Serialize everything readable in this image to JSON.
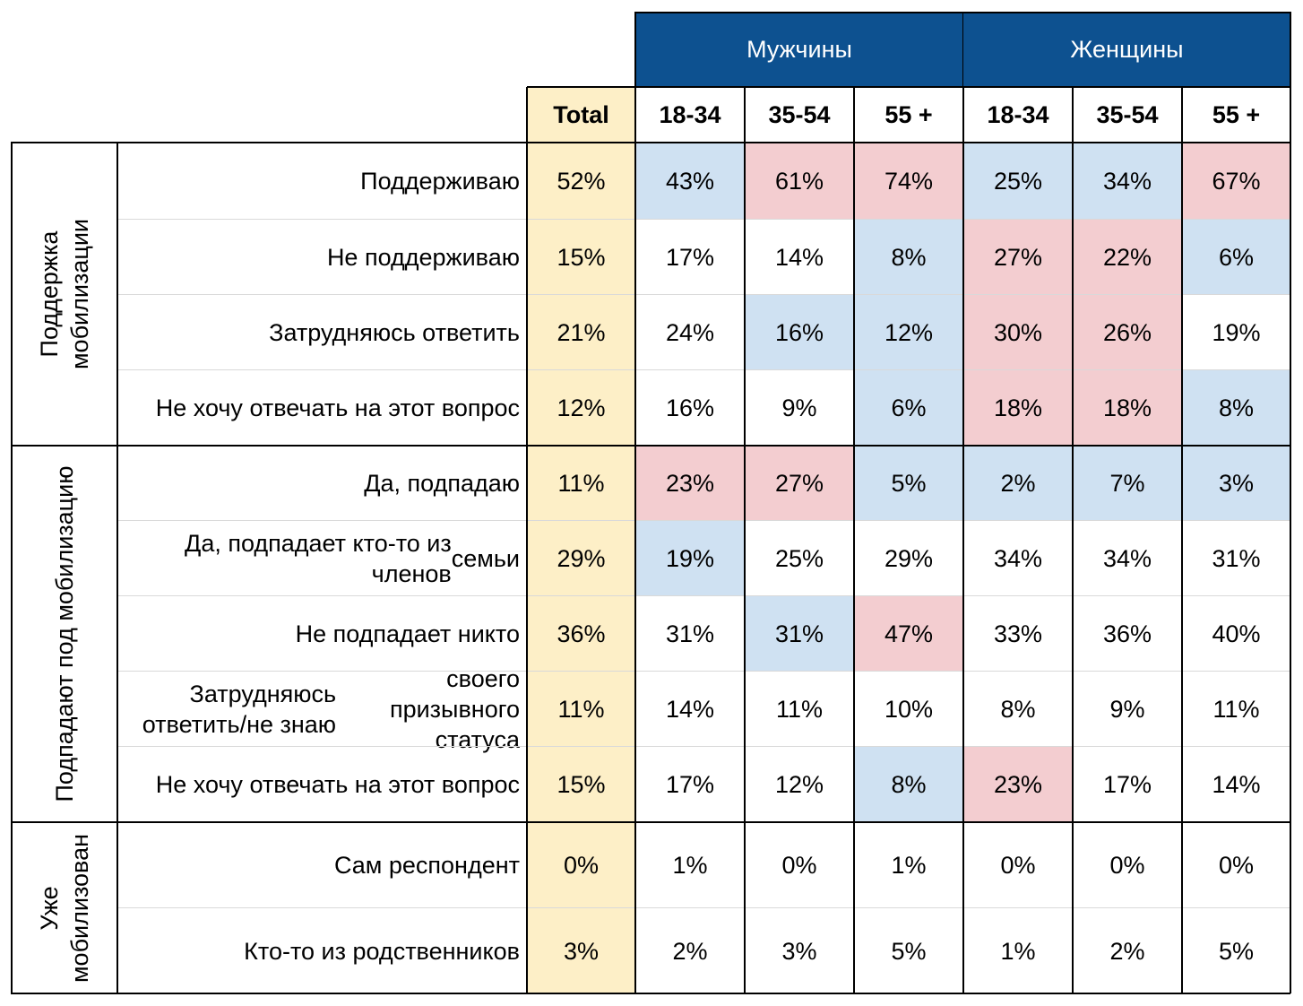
{
  "chart_data": {
    "type": "table",
    "groups": [
      {
        "name": "Мужчины",
        "columns": [
          "18-34",
          "35-54",
          "55 +"
        ]
      },
      {
        "name": "Женщины",
        "columns": [
          "18-34",
          "35-54",
          "55 +"
        ]
      }
    ],
    "total_label": "Total",
    "column_headers": [
      "Total",
      "18-34",
      "35-54",
      "55 +",
      "18-34",
      "35-54",
      "55 +"
    ],
    "sections": [
      {
        "name": "Поддержка мобилизации",
        "rows": [
          {
            "label": "Поддерживаю",
            "values": [
              "52%",
              "43%",
              "61%",
              "74%",
              "25%",
              "34%",
              "67%"
            ],
            "highlight": [
              "",
              "blue",
              "red",
              "red",
              "blue",
              "blue",
              "red"
            ]
          },
          {
            "label": "Не поддерживаю",
            "values": [
              "15%",
              "17%",
              "14%",
              "8%",
              "27%",
              "22%",
              "6%"
            ],
            "highlight": [
              "",
              "",
              "",
              "blue",
              "red",
              "red",
              "blue"
            ]
          },
          {
            "label": "Затрудняюсь ответить",
            "values": [
              "21%",
              "24%",
              "16%",
              "12%",
              "30%",
              "26%",
              "19%"
            ],
            "highlight": [
              "",
              "",
              "blue",
              "blue",
              "red",
              "red",
              ""
            ]
          },
          {
            "label": "Не хочу отвечать на этот вопрос",
            "values": [
              "12%",
              "16%",
              "9%",
              "6%",
              "18%",
              "18%",
              "8%"
            ],
            "highlight": [
              "",
              "",
              "",
              "blue",
              "red",
              "red",
              "blue"
            ]
          }
        ]
      },
      {
        "name": "Подпадают под мобилизацию",
        "rows": [
          {
            "label": "Да, подпадаю",
            "values": [
              "11%",
              "23%",
              "27%",
              "5%",
              "2%",
              "7%",
              "3%"
            ],
            "highlight": [
              "",
              "red",
              "red",
              "blue",
              "blue",
              "blue",
              "blue"
            ]
          },
          {
            "label": "Да, подпадает кто-то из членов семьи",
            "values": [
              "29%",
              "19%",
              "25%",
              "29%",
              "34%",
              "34%",
              "31%"
            ],
            "highlight": [
              "",
              "blue",
              "",
              "",
              "",
              "",
              ""
            ]
          },
          {
            "label": "Не подпадает никто",
            "values": [
              "36%",
              "31%",
              "31%",
              "47%",
              "33%",
              "36%",
              "40%"
            ],
            "highlight": [
              "",
              "",
              "blue",
              "red",
              "",
              "",
              ""
            ]
          },
          {
            "label": "Затрудняюсь ответить/не знаю своего призывного статуса",
            "values": [
              "11%",
              "14%",
              "11%",
              "10%",
              "8%",
              "9%",
              "11%"
            ],
            "highlight": [
              "",
              "",
              "",
              "",
              "",
              "",
              ""
            ]
          },
          {
            "label": "Не хочу отвечать на этот вопрос",
            "values": [
              "15%",
              "17%",
              "12%",
              "8%",
              "23%",
              "17%",
              "14%"
            ],
            "highlight": [
              "",
              "",
              "",
              "blue",
              "red",
              "",
              ""
            ]
          }
        ]
      },
      {
        "name": "Уже мобилизован",
        "rows": [
          {
            "label": "Сам респондент",
            "values": [
              "0%",
              "1%",
              "0%",
              "1%",
              "0%",
              "0%",
              "0%"
            ],
            "highlight": [
              "",
              "",
              "",
              "",
              "",
              "",
              ""
            ]
          },
          {
            "label": "Кто-то из родственников",
            "values": [
              "3%",
              "2%",
              "3%",
              "5%",
              "1%",
              "2%",
              "5%"
            ],
            "highlight": [
              "",
              "",
              "",
              "",
              "",
              "",
              ""
            ]
          }
        ]
      }
    ]
  },
  "label_lines": {
    "Да, подпадает кто-то из членов семьи": [
      "Да, подпадает кто-то из членов",
      "семьи"
    ],
    "Затрудняюсь ответить/не знаю своего призывного статуса": [
      "Затрудняюсь ответить/не знаю",
      "своего призывного статуса"
    ]
  },
  "section_lines": {
    "Поддержка мобилизации": [
      "Поддержка",
      "мобилизации"
    ],
    "Подпадают под мобилизацию": [
      "Подпадают под мобилизацию"
    ],
    "Уже мобилизован": [
      "Уже",
      "мобилизован"
    ]
  },
  "colors": {
    "header_blue": "#0d5190",
    "total_fill": "#fdefc7",
    "low_fill": "#cfe1f2",
    "high_fill": "#f3cdd0"
  }
}
